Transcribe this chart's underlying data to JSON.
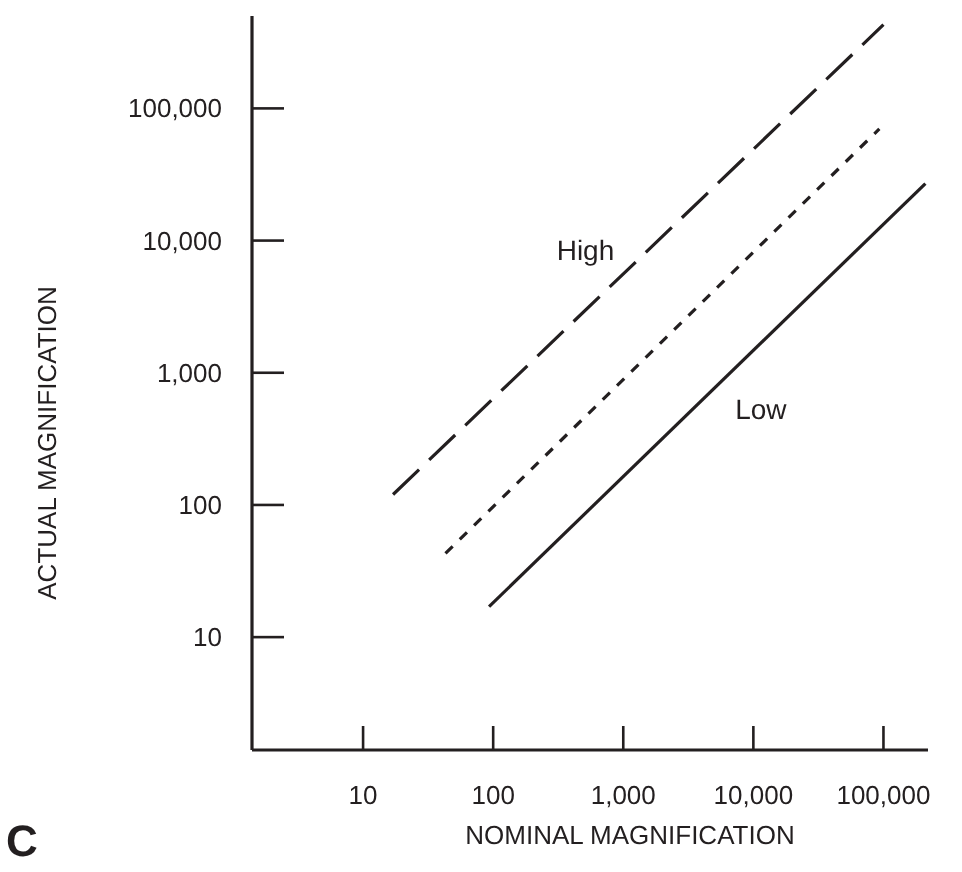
{
  "chart_data": {
    "type": "line",
    "xlabel": "NOMINAL MAGNIFICATION",
    "ylabel": "ACTUAL MAGNIFICATION",
    "log": "xy",
    "grid": false,
    "marker": "none",
    "xlim": [
      1.4,
      220000
    ],
    "ylim": [
      1.4,
      500000
    ],
    "xticks": [
      10,
      100,
      {
        "value": 1000,
        "label": "1,000"
      },
      {
        "value": 10000,
        "label": "10,000"
      },
      {
        "value": 100000,
        "label": "100,000"
      }
    ],
    "yticks": [
      10,
      100,
      {
        "value": 1000,
        "label": "1,000"
      },
      {
        "value": 10000,
        "label": "10,000"
      },
      {
        "value": 100000,
        "label": "100,000"
      }
    ],
    "series": [
      {
        "name": "High",
        "color": "#231f20",
        "line_style": "dashed",
        "x": [
          17,
          100000
        ],
        "values": [
          120,
          430000
        ]
      },
      {
        "color": "#231f20",
        "line_style": "dotted",
        "x": [
          43,
          93000
        ],
        "values": [
          43,
          70000
        ]
      },
      {
        "name": "Low",
        "color": "#231f20",
        "line_style": "solid",
        "x": [
          93,
          210000
        ],
        "values": [
          17,
          27000
        ]
      }
    ],
    "annotations": [
      "C"
    ]
  }
}
